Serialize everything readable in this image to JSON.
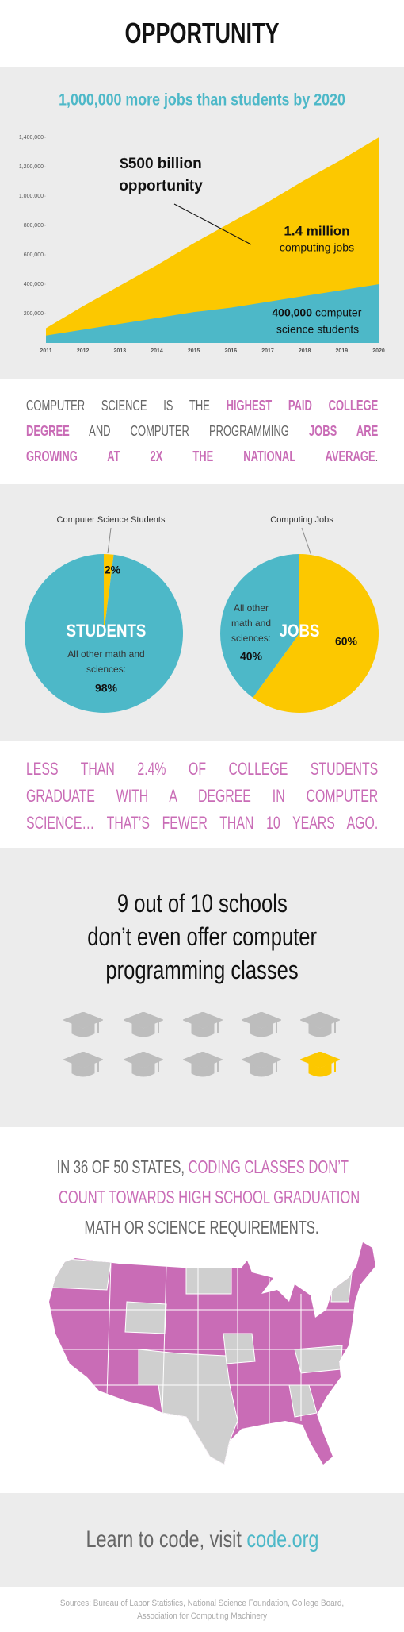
{
  "header": {
    "title": "OPPORTUNITY"
  },
  "chart_data": [
    {
      "type": "area",
      "title": "1,000,000 more jobs than students by 2020",
      "categories": [
        "2011",
        "2012",
        "2013",
        "2014",
        "2015",
        "2016",
        "2017",
        "2018",
        "2019",
        "2020"
      ],
      "series": [
        {
          "color": "#fcc800",
          "values": [
            100000,
            250000,
            390000,
            530000,
            680000,
            820000,
            960000,
            1110000,
            1250000,
            1400000
          ]
        },
        {
          "color": "#4db8c8",
          "values": [
            50000,
            90000,
            130000,
            170000,
            210000,
            240000,
            280000,
            320000,
            360000,
            400000
          ]
        }
      ],
      "ylim": [
        0,
        1450000
      ],
      "yticks": [
        {
          "value": 200000,
          "label": "200,000"
        },
        {
          "value": 400000,
          "label": "400,000"
        },
        {
          "value": 600000,
          "label": "600,000"
        },
        {
          "value": 800000,
          "label": "800,000"
        },
        {
          "value": 1000000,
          "label": "1,000,000"
        },
        {
          "value": 1200000,
          "label": "1,200,000"
        },
        {
          "value": 1400000,
          "label": "1,400,000"
        }
      ],
      "grid": false,
      "annotations": [
        "$500 billion",
        "opportunity",
        "1.4 million",
        "computing jobs",
        "400,000",
        "computer",
        "science students"
      ]
    },
    {
      "type": "pie",
      "title": "Computer Science Students",
      "label": "STUDENTS",
      "categories": [
        null,
        "All other math and sciences:"
      ],
      "values": [
        2,
        98
      ],
      "value_labels": [
        "2%",
        "98%"
      ],
      "colors": [
        "#fcc800",
        "#4db8c8"
      ]
    },
    {
      "type": "pie",
      "title": "Computing Jobs",
      "label": "JOBS",
      "categories": [
        null,
        "All other math and sciences:"
      ],
      "values": [
        60,
        40
      ],
      "value_labels": [
        "60%",
        "40%"
      ],
      "colors": [
        "#fcc800",
        "#4db8c8"
      ]
    }
  ],
  "statement1": {
    "lines": [
      [
        {
          "text": "COMPUTER SCIENCE IS THE ",
          "style": "plain"
        },
        {
          "text": "HIGHEST PAID COLLEGE",
          "style": "strong"
        }
      ],
      [
        {
          "text": "DEGREE",
          "style": "strong"
        },
        {
          "text": " AND COMPUTER PROGRAMMING ",
          "style": "plain"
        },
        {
          "text": "JOBS ARE",
          "style": "strong"
        }
      ],
      [
        {
          "text": "GROWING AT 2X THE NATIONAL AVERAGE",
          "style": "strong"
        },
        {
          "text": ".",
          "style": "plain"
        }
      ]
    ]
  },
  "statement2": {
    "lines": [
      [
        {
          "text": "LESS THAN 2.4% OF COLLEGE STUDENTS",
          "style": "highlight"
        }
      ],
      [
        {
          "text": "GRADUATE WITH A DEGREE IN COMPUTER",
          "style": "highlight"
        }
      ],
      [
        {
          "text": "SCIENCE… THAT’S FEWER THAN 10 YEARS AGO.",
          "style": "highlight"
        }
      ]
    ]
  },
  "schools": {
    "lines": [
      "9 out of 10 schools",
      "don’t even offer computer",
      "programming classes"
    ]
  },
  "states": {
    "lines": [
      [
        {
          "text": "IN 36 OF 50 STATES, ",
          "style": "plain"
        },
        {
          "text": "CODING CLASSES DON’T",
          "style": "highlight"
        }
      ],
      [
        {
          "text": "COUNT TOWARDS HIGH SCHOOL GRADUATION",
          "style": "highlight"
        }
      ],
      [
        {
          "text": "MATH OR SCIENCE REQUIREMENTS.",
          "style": "plain"
        }
      ]
    ]
  },
  "cta": {
    "segments": [
      {
        "text": "Learn to code, visit ",
        "style": "plain"
      },
      {
        "text": "code.org",
        "style": "link"
      }
    ]
  },
  "sources": {
    "lines": [
      "Sources: Bureau of Labor Statistics, National Science Foundation, College Board,",
      "Association for Computing Machinery"
    ]
  }
}
